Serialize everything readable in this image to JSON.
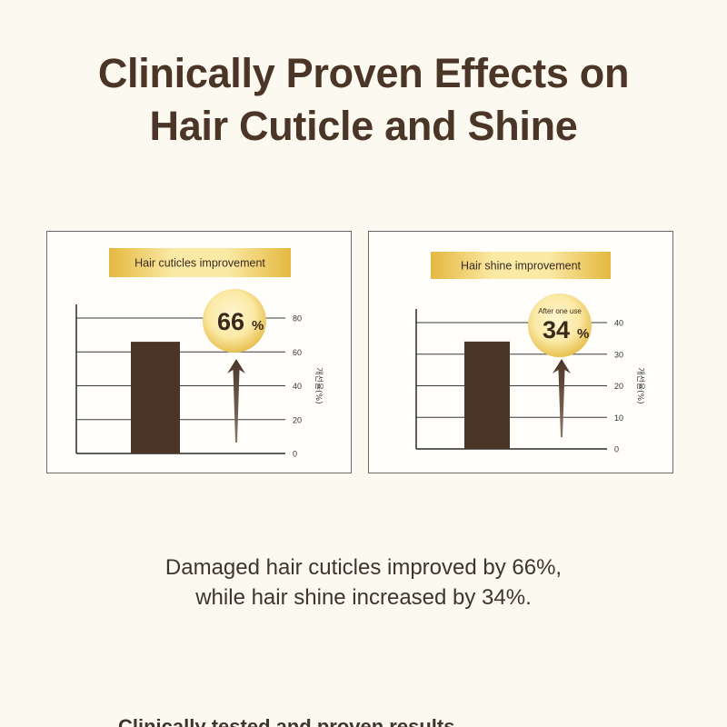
{
  "headline": {
    "line1": "Clinically Proven Effects on",
    "line2": "Hair Cuticle and Shine"
  },
  "chart_data": [
    {
      "type": "bar",
      "title": "Hair cuticles improvement",
      "ylabel": "개선율(%)",
      "ylim": [
        0,
        80
      ],
      "yticks": [
        0,
        20,
        40,
        60,
        80
      ],
      "values": [
        66
      ],
      "callout": {
        "value": "66",
        "unit": "%",
        "note": ""
      }
    },
    {
      "type": "bar",
      "title": "Hair shine improvement",
      "ylabel": "개선율(%)",
      "ylim": [
        0,
        40
      ],
      "yticks": [
        0,
        10,
        20,
        30,
        40
      ],
      "values": [
        34
      ],
      "callout": {
        "value": "34",
        "unit": "%",
        "note": "After one use"
      }
    }
  ],
  "caption": {
    "line1": "Damaged hair cuticles improved by 66%,",
    "line2": "while hair shine increased by 34%."
  },
  "footer_cutoff": "Clinically tested and proven results",
  "colors": {
    "background": "#fcf9f0",
    "heading": "#4a3526",
    "bar": "#4a3526",
    "gold_light": "#fbe9a6",
    "gold_dark": "#e4b83f"
  }
}
